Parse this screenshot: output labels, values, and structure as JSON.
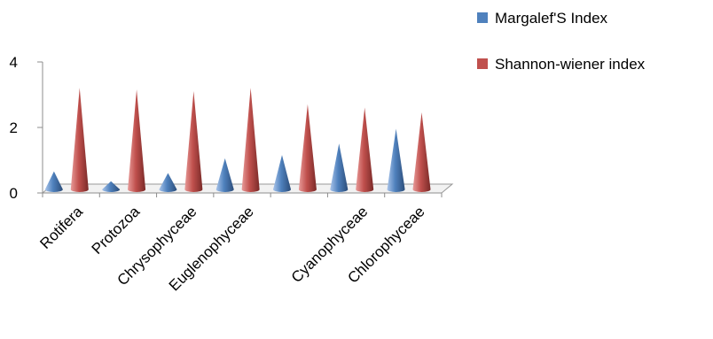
{
  "chart_data": {
    "type": "bar",
    "style": "3d-cone",
    "categories": [
      "Rotifera",
      "Protozoa",
      "Chrysophyceae",
      "Euglenophyceae",
      "",
      "Cyanophyceae",
      "Chlorophyceae"
    ],
    "series": [
      {
        "name": "Margalef'S Index",
        "color": "#4f81bd",
        "values": [
          0.55,
          0.25,
          0.5,
          0.95,
          1.05,
          1.4,
          1.85
        ]
      },
      {
        "name": "Shannon-wiener index",
        "color": "#c0504d",
        "values": [
          3.1,
          3.05,
          3.0,
          3.1,
          2.6,
          2.5,
          2.35
        ]
      }
    ],
    "yticks": [
      0,
      2,
      4
    ],
    "ylim": [
      0,
      4
    ],
    "legend_position": "top-right",
    "grid": false
  }
}
